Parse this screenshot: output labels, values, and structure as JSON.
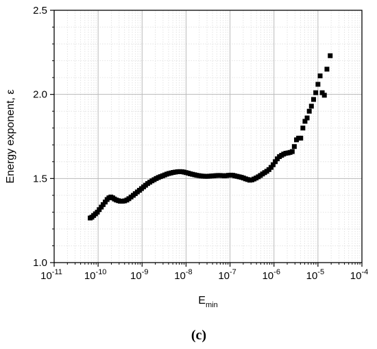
{
  "chart_data": {
    "type": "scatter",
    "xscale": "log",
    "xlim": [
      1e-11,
      0.0001
    ],
    "ylim": [
      1.0,
      2.5
    ],
    "xlabel": {
      "main": "E",
      "sub": "min"
    },
    "ylabel": "Energy exponent, ε",
    "panel_label": "(c)",
    "x_tick_labels": [
      {
        "base": "10",
        "exp": "-11"
      },
      {
        "base": "10",
        "exp": "-10"
      },
      {
        "base": "10",
        "exp": "-9"
      },
      {
        "base": "10",
        "exp": "-8"
      },
      {
        "base": "10",
        "exp": "-7"
      },
      {
        "base": "10",
        "exp": "-6"
      },
      {
        "base": "10",
        "exp": "-5"
      },
      {
        "base": "10",
        "exp": "-4"
      }
    ],
    "y_tick_labels": [
      "1.0",
      "1.5",
      "2.0",
      "2.5"
    ],
    "grid": {
      "major": true,
      "minor": true
    },
    "marker": {
      "shape": "square",
      "color": "#000000"
    },
    "series": [
      {
        "points": [
          [
            6.6e-11,
            1.265
          ],
          [
            7.2e-11,
            1.27
          ],
          [
            7.9e-11,
            1.28
          ],
          [
            8.7e-11,
            1.29
          ],
          [
            9.6e-11,
            1.3
          ],
          [
            1.06e-10,
            1.315
          ],
          [
            1.18e-10,
            1.33
          ],
          [
            1.3e-10,
            1.345
          ],
          [
            1.45e-10,
            1.36
          ],
          [
            1.6e-10,
            1.375
          ],
          [
            1.76e-10,
            1.385
          ],
          [
            1.95e-10,
            1.39
          ],
          [
            2.15e-10,
            1.385
          ],
          [
            2.35e-10,
            1.378
          ],
          [
            2.6e-10,
            1.372
          ],
          [
            2.9e-10,
            1.368
          ],
          [
            3.2e-10,
            1.365
          ],
          [
            3.6e-10,
            1.365
          ],
          [
            4e-10,
            1.367
          ],
          [
            4.5e-10,
            1.372
          ],
          [
            5e-10,
            1.38
          ],
          [
            5.6e-10,
            1.39
          ],
          [
            6.3e-10,
            1.4
          ],
          [
            7e-10,
            1.41
          ],
          [
            7.8e-10,
            1.42
          ],
          [
            8.7e-10,
            1.43
          ],
          [
            9.7e-10,
            1.44
          ],
          [
            1.08e-09,
            1.45
          ],
          [
            1.2e-09,
            1.46
          ],
          [
            1.34e-09,
            1.47
          ],
          [
            1.5e-09,
            1.478
          ],
          [
            1.68e-09,
            1.486
          ],
          [
            1.88e-09,
            1.493
          ],
          [
            2.1e-09,
            1.5
          ],
          [
            2.35e-09,
            1.506
          ],
          [
            2.62e-09,
            1.511
          ],
          [
            2.93e-09,
            1.516
          ],
          [
            3.27e-09,
            1.521
          ],
          [
            3.65e-09,
            1.526
          ],
          [
            4.08e-09,
            1.53
          ],
          [
            4.56e-09,
            1.533
          ],
          [
            5.1e-09,
            1.536
          ],
          [
            5.7e-09,
            1.538
          ],
          [
            6.4e-09,
            1.54
          ],
          [
            7.2e-09,
            1.541
          ],
          [
            8.1e-09,
            1.54
          ],
          [
            9e-09,
            1.538
          ],
          [
            1e-08,
            1.535
          ],
          [
            1.12e-08,
            1.532
          ],
          [
            1.25e-08,
            1.528
          ],
          [
            1.4e-08,
            1.525
          ],
          [
            1.57e-08,
            1.522
          ],
          [
            1.75e-08,
            1.519
          ],
          [
            1.96e-08,
            1.517
          ],
          [
            2.19e-08,
            1.515
          ],
          [
            2.45e-08,
            1.514
          ],
          [
            2.74e-08,
            1.513
          ],
          [
            3.06e-08,
            1.513
          ],
          [
            3.42e-08,
            1.514
          ],
          [
            3.82e-08,
            1.515
          ],
          [
            4.27e-08,
            1.516
          ],
          [
            4.77e-08,
            1.517
          ],
          [
            5.33e-08,
            1.518
          ],
          [
            5.95e-08,
            1.518
          ],
          [
            6.65e-08,
            1.517
          ],
          [
            7.43e-08,
            1.516
          ],
          [
            8.3e-08,
            1.517
          ],
          [
            9.27e-08,
            1.519
          ],
          [
            1.04e-07,
            1.52
          ],
          [
            1.16e-07,
            1.519
          ],
          [
            1.29e-07,
            1.516
          ],
          [
            1.45e-07,
            1.513
          ],
          [
            1.62e-07,
            1.51
          ],
          [
            1.81e-07,
            1.507
          ],
          [
            2.02e-07,
            1.503
          ],
          [
            2.26e-07,
            1.498
          ],
          [
            2.52e-07,
            1.494
          ],
          [
            2.82e-07,
            1.49
          ],
          [
            3.15e-07,
            1.492
          ],
          [
            3.52e-07,
            1.497
          ],
          [
            3.93e-07,
            1.503
          ],
          [
            4.4e-07,
            1.51
          ],
          [
            4.91e-07,
            1.518
          ],
          [
            5.49e-07,
            1.527
          ],
          [
            6.13e-07,
            1.535
          ],
          [
            6.85e-07,
            1.543
          ],
          [
            7.66e-07,
            1.553
          ],
          [
            8.56e-07,
            1.566
          ],
          [
            9.56e-07,
            1.582
          ],
          [
            1.07e-06,
            1.6
          ],
          [
            1.19e-06,
            1.617
          ],
          [
            1.33e-06,
            1.63
          ],
          [
            1.49e-06,
            1.638
          ],
          [
            1.66e-06,
            1.645
          ],
          [
            1.86e-06,
            1.65
          ],
          [
            2.08e-06,
            1.652
          ],
          [
            2.32e-06,
            1.655
          ],
          [
            2.6e-06,
            1.66
          ],
          [
            2.9e-06,
            1.69
          ],
          [
            3.25e-06,
            1.73
          ],
          [
            3.63e-06,
            1.74
          ],
          [
            4.06e-06,
            1.74
          ],
          [
            4.54e-06,
            1.8
          ],
          [
            5.07e-06,
            1.84
          ],
          [
            5.67e-06,
            1.86
          ],
          [
            6.35e-06,
            1.9
          ],
          [
            7.1e-06,
            1.93
          ],
          [
            7.95e-06,
            1.97
          ],
          [
            8.9e-06,
            2.01
          ],
          [
            1e-05,
            2.06
          ],
          [
            1.12e-05,
            2.11
          ],
          [
            1.25e-05,
            2.01
          ],
          [
            1.4e-05,
            1.995
          ],
          [
            1.6e-05,
            2.15
          ],
          [
            1.9e-05,
            2.23
          ]
        ]
      }
    ]
  }
}
